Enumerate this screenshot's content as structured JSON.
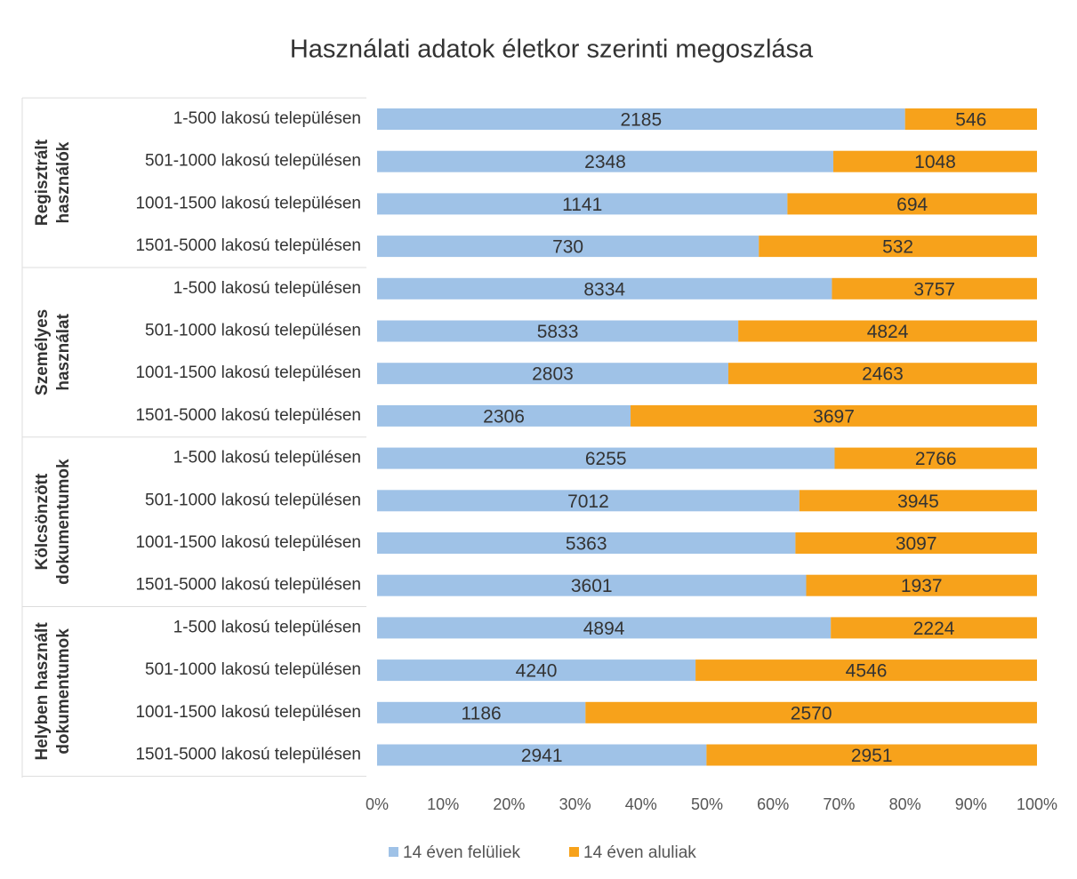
{
  "chart_data": {
    "type": "bar",
    "orientation": "horizontal",
    "stacking": "percent",
    "title": "Használati adatok életkor szerinti megoszlása",
    "groups": [
      {
        "label": [
          "Regisztrált",
          "használók"
        ],
        "categories": [
          "1-500 lakosú településen",
          "501-1000 lakosú településen",
          "1001-1500 lakosú településen",
          "1501-5000 lakosú településen"
        ]
      },
      {
        "label": [
          "Személyes",
          "használat"
        ],
        "categories": [
          "1-500 lakosú településen",
          "501-1000 lakosú településen",
          "1001-1500 lakosú településen",
          "1501-5000 lakosú településen"
        ]
      },
      {
        "label": [
          "Kölcsönzött",
          "dokumentumok"
        ],
        "categories": [
          "1-500 lakosú településen",
          "501-1000 lakosú településen",
          "1001-1500 lakosú településen",
          "1501-5000 lakosú településen"
        ]
      },
      {
        "label": [
          "Helyben használt",
          "dokumentumok"
        ],
        "categories": [
          "1-500 lakosú településen",
          "501-1000 lakosú településen",
          "1001-1500 lakosú településen",
          "1501-5000 lakosú településen"
        ]
      }
    ],
    "series": [
      {
        "name": "14 éven felüliek",
        "color": "#9fc2e7",
        "values": [
          2185,
          2348,
          1141,
          730,
          8334,
          5833,
          2803,
          2306,
          6255,
          7012,
          5363,
          3601,
          4894,
          4240,
          1186,
          2941
        ]
      },
      {
        "name": "14 éven aluliak",
        "color": "#f7a21b",
        "values": [
          546,
          1048,
          694,
          532,
          3757,
          4824,
          2463,
          3697,
          2766,
          3945,
          3097,
          1937,
          2224,
          4546,
          2570,
          2951
        ]
      }
    ],
    "xlim": [
      0,
      100
    ],
    "xticks": [
      {
        "value": 0,
        "label": "0%"
      },
      {
        "value": 10,
        "label": "10%"
      },
      {
        "value": 20,
        "label": "20%"
      },
      {
        "value": 30,
        "label": "30%"
      },
      {
        "value": 40,
        "label": "40%"
      },
      {
        "value": 50,
        "label": "50%"
      },
      {
        "value": 60,
        "label": "60%"
      },
      {
        "value": 70,
        "label": "70%"
      },
      {
        "value": 80,
        "label": "80%"
      },
      {
        "value": 90,
        "label": "90%"
      },
      {
        "value": 100,
        "label": "100%"
      }
    ],
    "legend": "bottom"
  }
}
